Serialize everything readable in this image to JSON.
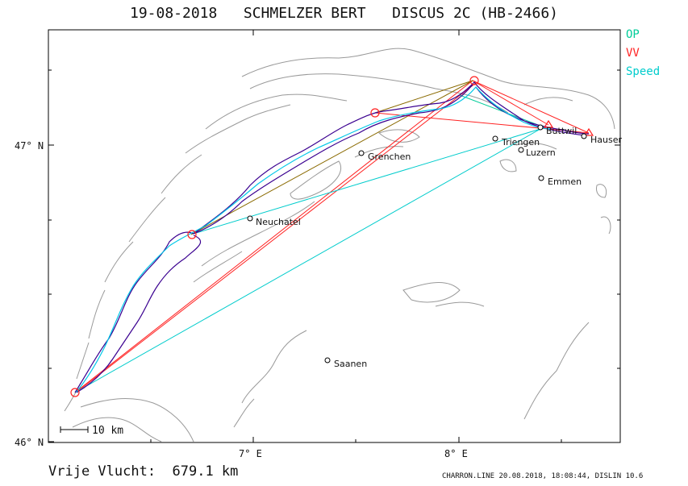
{
  "header": {
    "title": "19-08-2018   SCHMELZER BERT   DISCUS 2C (HB-2466)"
  },
  "legend": [
    {
      "label": "OP",
      "color": "#00cc99"
    },
    {
      "label": "VV",
      "color": "#ff2222"
    },
    {
      "label": "Speed",
      "color": "#00cccc"
    }
  ],
  "axes": {
    "lat_labels": [
      "47° N",
      "46° N"
    ],
    "lon_labels": [
      "7° E",
      "8° E"
    ]
  },
  "scale": {
    "label": "10 km"
  },
  "places": [
    {
      "name": "Grenchen"
    },
    {
      "name": "Neuchatel"
    },
    {
      "name": "Triengen"
    },
    {
      "name": "Luzern"
    },
    {
      "name": "Emmen"
    },
    {
      "name": "Buttwil"
    },
    {
      "name": "Hauser"
    },
    {
      "name": "Saanen"
    }
  ],
  "footer": {
    "distance": "Vrije Vlucht:  679.1 km",
    "credit": "CHARRON.LINE 20.08.2018, 18:08:44, DISLIN 10.6"
  },
  "colors": {
    "track": "#3a0090",
    "track2": "#00c8e8",
    "op": "#00cc99",
    "vv": "#ff2222",
    "terrain": "#999999",
    "frame": "#000000"
  }
}
